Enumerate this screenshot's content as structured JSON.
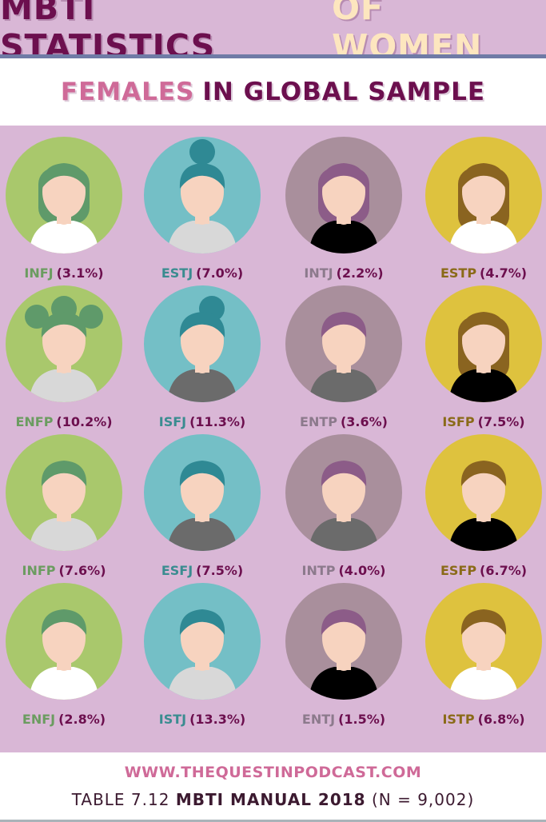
{
  "header": {
    "title_main": "MBTI STATISTICS",
    "title_accent": "OF WOMEN"
  },
  "subheader": {
    "accent": "FEMALES",
    "rest": "IN GLOBAL SAMPLE"
  },
  "colors": {
    "columns": [
      {
        "circle": "#a9c86c",
        "hair": "#5f9a6a",
        "label": "#6b9c60"
      },
      {
        "circle": "#74bfc6",
        "hair": "#2f8994",
        "label": "#3a8c90"
      },
      {
        "circle": "#a98f9c",
        "hair": "#8c5c88",
        "label": "#8c7a8c"
      },
      {
        "circle": "#dec23e",
        "hair": "#8a6420",
        "label": "#8a6a18"
      }
    ],
    "skin": "#f7d3bf",
    "percent": "#6c0f4e"
  },
  "types": [
    {
      "type": "INFJ",
      "percent": "(3.1%)",
      "shirt": "#ffffff"
    },
    {
      "type": "ESTJ",
      "percent": "(7.0%)",
      "shirt": "#d8d8d8"
    },
    {
      "type": "INTJ",
      "percent": "(2.2%)",
      "shirt": "#000000"
    },
    {
      "type": "ESTP",
      "percent": "(4.7%)",
      "shirt": "#ffffff"
    },
    {
      "type": "ENFP",
      "percent": "(10.2%)",
      "shirt": "#d8d8d8"
    },
    {
      "type": "ISFJ",
      "percent": "(11.3%)",
      "shirt": "#6b6b6b"
    },
    {
      "type": "ENTP",
      "percent": "(3.6%)",
      "shirt": "#6b6b6b"
    },
    {
      "type": "ISFP",
      "percent": "(7.5%)",
      "shirt": "#000000"
    },
    {
      "type": "INFP",
      "percent": "(7.6%)",
      "shirt": "#d8d8d8"
    },
    {
      "type": "ESFJ",
      "percent": "(7.5%)",
      "shirt": "#6b6b6b"
    },
    {
      "type": "INTP",
      "percent": "(4.0%)",
      "shirt": "#6b6b6b"
    },
    {
      "type": "ESFP",
      "percent": "(6.7%)",
      "shirt": "#000000"
    },
    {
      "type": "ENFJ",
      "percent": "(2.8%)",
      "shirt": "#ffffff"
    },
    {
      "type": "ISTJ",
      "percent": "(13.3%)",
      "shirt": "#d8d8d8"
    },
    {
      "type": "ENTJ",
      "percent": "(1.5%)",
      "shirt": "#000000"
    },
    {
      "type": "ISTP",
      "percent": "(6.8%)",
      "shirt": "#ffffff"
    }
  ],
  "footer": {
    "url": "WWW.THEQUESTINPODCAST.COM",
    "source_prefix": "TABLE 7.12",
    "source_bold": "MBTI MANUAL 2018",
    "source_suffix": "(N =  9,002)"
  }
}
